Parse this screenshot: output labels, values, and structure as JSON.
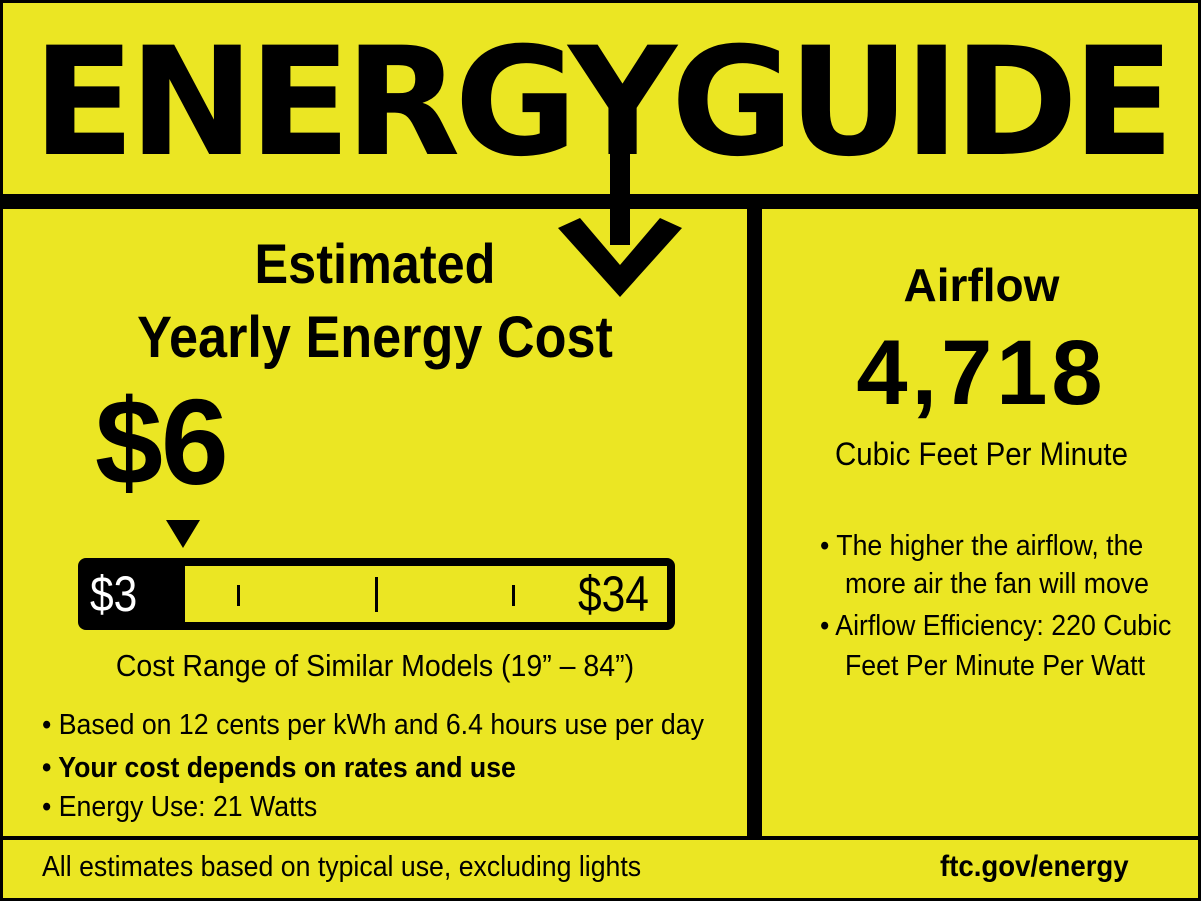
{
  "header": {
    "title": "ENERGYGUIDE"
  },
  "cost": {
    "heading_line1": "Estimated",
    "heading_line2": "Yearly Energy Cost",
    "value": "$6",
    "range_low": "$3",
    "range_high": "$34",
    "range_caption": "Cost Range of Similar Models (19” – 84”)",
    "bullets": [
      "• Based on 12 cents per kWh and 6.4 hours use per day",
      "• Your cost depends on rates and use",
      "• Energy Use:  21 Watts"
    ]
  },
  "airflow": {
    "heading": "Airflow",
    "value": "4,718",
    "unit": "Cubic Feet Per Minute",
    "bullet1_line1": "• The higher the airflow, the",
    "bullet1_line2": "more air the fan will move",
    "bullet2_line1": "• Airflow Efficiency: 220 Cubic",
    "bullet2_line2": "Feet Per Minute Per Watt"
  },
  "footer": {
    "note": "All estimates based on typical use, excluding lights",
    "url": "ftc.gov/energy"
  },
  "colors": {
    "background": "#ebe623",
    "ink": "#000000"
  }
}
